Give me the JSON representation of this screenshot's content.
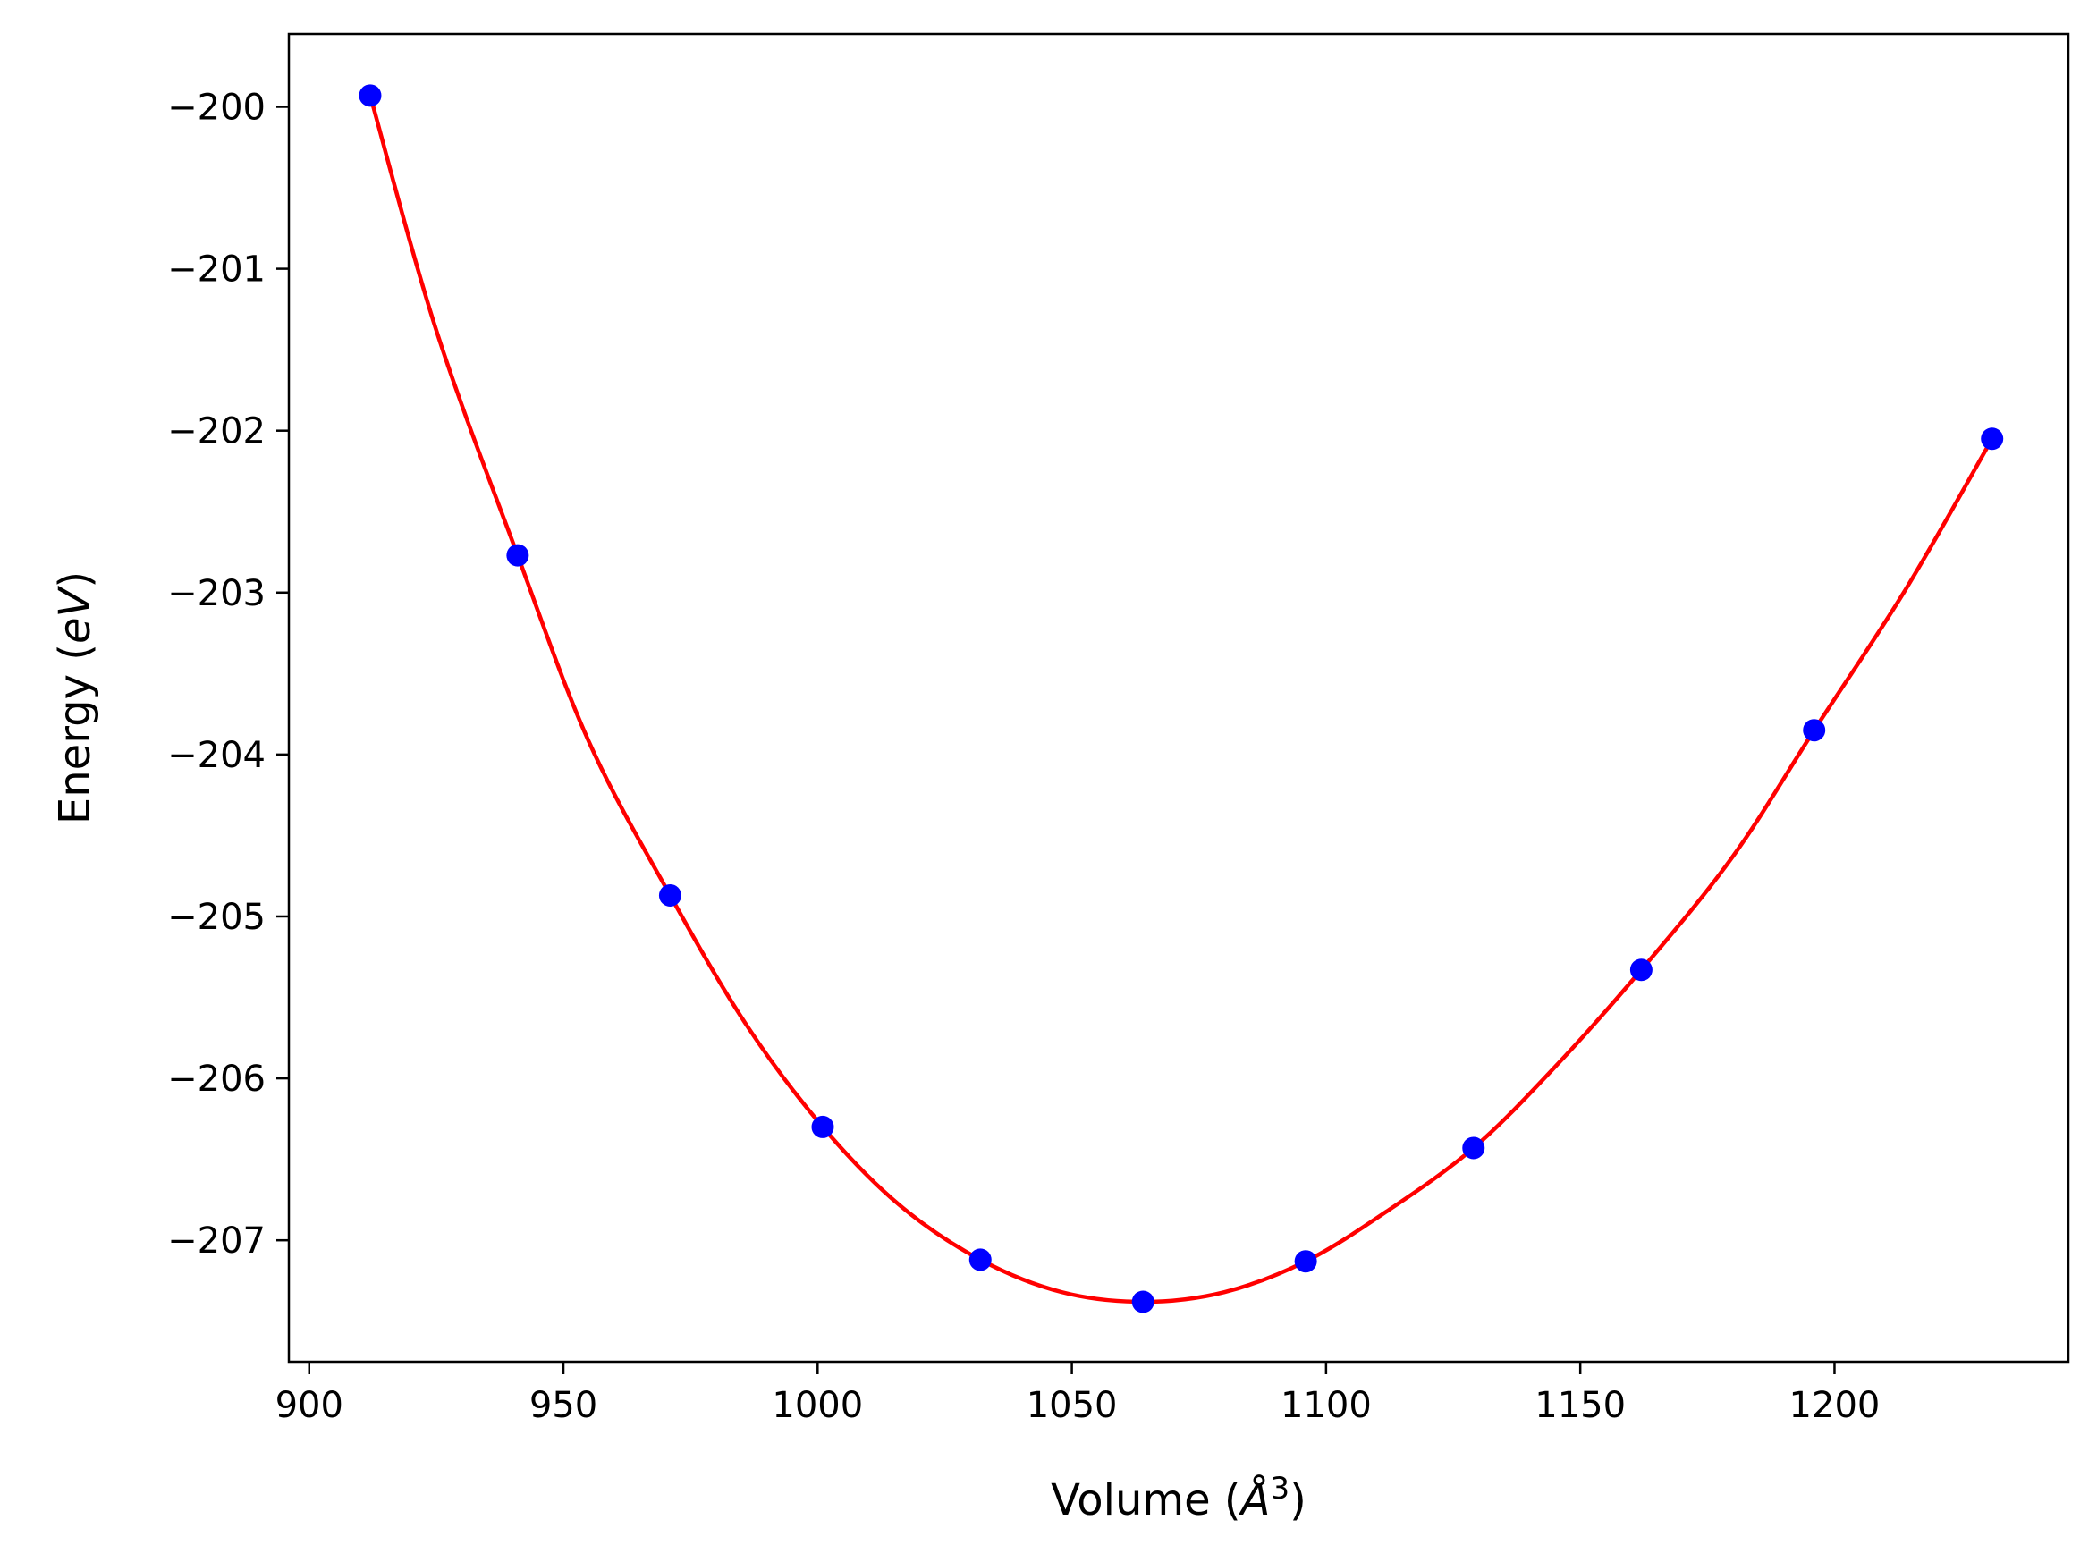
{
  "chart_data": {
    "type": "scatter",
    "title": "",
    "xlabel": "Volume (",
    "xlabel_unit": "Å",
    "xlabel_exp": "3",
    "xlabel_close": ")",
    "ylabel": "Energy (",
    "ylabel_unit": "eV",
    "ylabel_close": ")",
    "xlim": [
      896,
      1246
    ],
    "ylim": [
      -207.75,
      -199.55
    ],
    "xticks": [
      900,
      950,
      1000,
      1050,
      1100,
      1150,
      1200
    ],
    "xtick_labels": [
      "900",
      "950",
      "1000",
      "1050",
      "1100",
      "1150",
      "1200"
    ],
    "yticks": [
      -200,
      -201,
      -202,
      -203,
      -204,
      -205,
      -206,
      -207
    ],
    "ytick_labels": [
      "−200",
      "−201",
      "−202",
      "−203",
      "−204",
      "−205",
      "−206",
      "−207"
    ],
    "grid": false,
    "series": [
      {
        "kind": "scatter",
        "color": "#0000ff",
        "x": [
          912,
          941,
          971,
          1001,
          1032,
          1064,
          1096,
          1129,
          1162,
          1196,
          1231
        ],
        "y": [
          -199.93,
          -202.77,
          -204.87,
          -206.3,
          -207.12,
          -207.38,
          -207.13,
          -206.43,
          -205.33,
          -203.85,
          -202.05
        ]
      },
      {
        "kind": "line",
        "color": "#ff0000",
        "x": [
          912,
          925,
          941,
          955,
          971,
          986,
          1001,
          1016,
          1032,
          1048,
          1064,
          1080,
          1096,
          1112,
          1129,
          1145,
          1162,
          1180,
          1196,
          1214,
          1231
        ],
        "y": [
          -199.93,
          -201.38,
          -202.77,
          -203.92,
          -204.87,
          -205.67,
          -206.3,
          -206.78,
          -207.12,
          -207.32,
          -207.38,
          -207.32,
          -207.13,
          -206.82,
          -206.43,
          -205.93,
          -205.33,
          -204.63,
          -203.85,
          -202.98,
          -202.05
        ]
      }
    ]
  }
}
